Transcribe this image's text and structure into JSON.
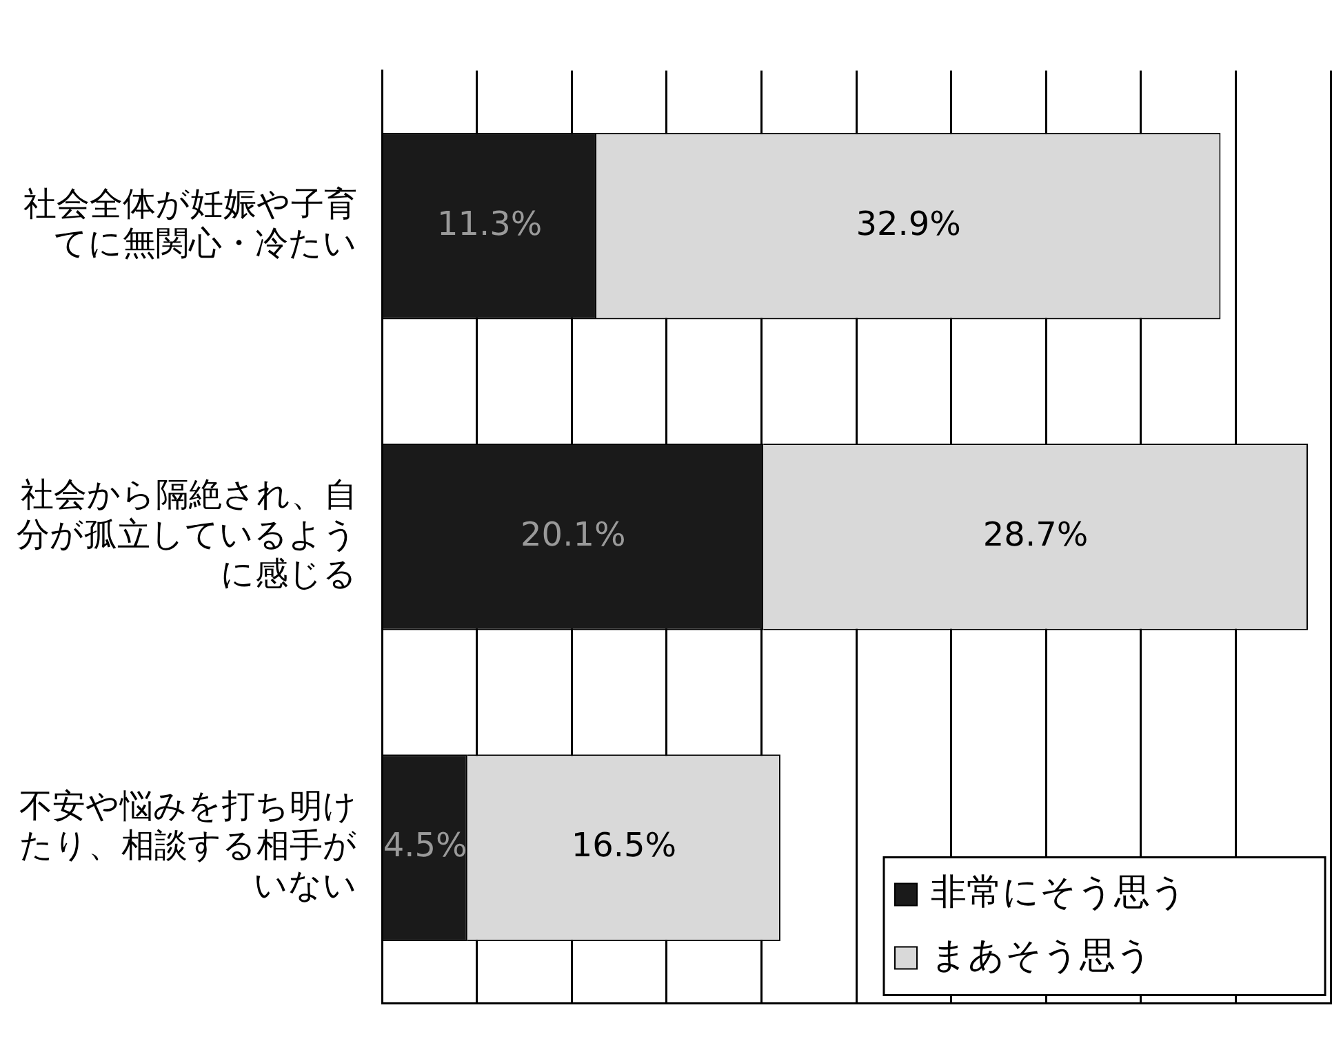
{
  "chart_data": {
    "type": "bar",
    "orientation": "horizontal",
    "stacked": true,
    "categories": [
      "社会全体が妊娠や子育てに無関心・冷たい",
      "社会から隔絶され、自分が孤立しているように感じる",
      "不安や悩みを打ち明けたり、相談する相手がいない"
    ],
    "series": [
      {
        "name": "非常にそう思う",
        "color": "#1a1a1a",
        "values": [
          11.3,
          20.1,
          4.5
        ],
        "value_labels": [
          "11.3%",
          "20.1%",
          "4.5%"
        ]
      },
      {
        "name": "まあそう思う",
        "color": "#d9d9d9",
        "values": [
          32.9,
          28.7,
          16.5
        ],
        "value_labels": [
          "32.9%",
          "28.7%",
          "16.5%"
        ]
      }
    ],
    "tick_labels": "y",
    "grid": "x",
    "legend": "bottom right"
  }
}
